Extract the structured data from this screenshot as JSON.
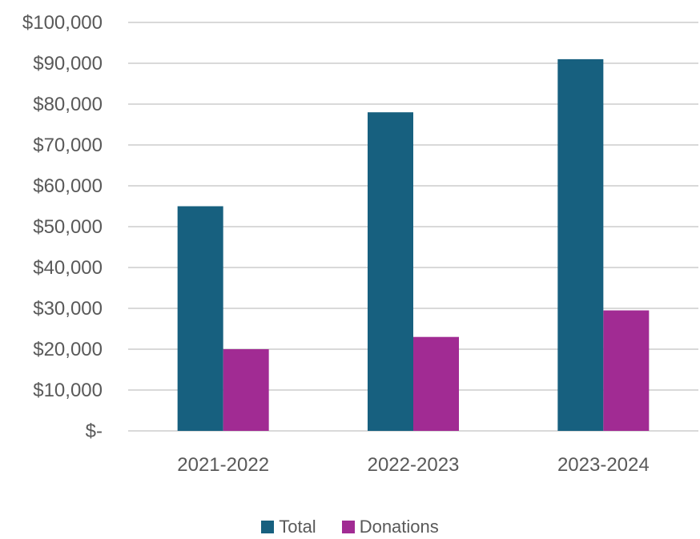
{
  "colors": {
    "total": "#17607f",
    "donations": "#a12b93",
    "grid": "#d9d9d9",
    "text": "#595959"
  },
  "chart_data": {
    "type": "bar",
    "title": "",
    "xlabel": "",
    "ylabel": "",
    "categories": [
      "2021-2022",
      "2022-2023",
      "2023-2024"
    ],
    "series": [
      {
        "name": "Total",
        "values": [
          55000,
          78000,
          91000
        ]
      },
      {
        "name": "Donations",
        "values": [
          20000,
          23000,
          29500
        ]
      }
    ],
    "ylim": [
      0,
      100000
    ],
    "y_ticks": [
      0,
      10000,
      20000,
      30000,
      40000,
      50000,
      60000,
      70000,
      80000,
      90000,
      100000
    ],
    "y_tick_labels": [
      "$-",
      "$10,000",
      "$20,000",
      "$30,000",
      "$40,000",
      "$50,000",
      "$60,000",
      "$70,000",
      "$80,000",
      "$90,000",
      "$100,000"
    ],
    "grid": true,
    "legend_position": "bottom"
  },
  "legend": {
    "items": [
      {
        "label": "Total"
      },
      {
        "label": "Donations"
      }
    ]
  }
}
